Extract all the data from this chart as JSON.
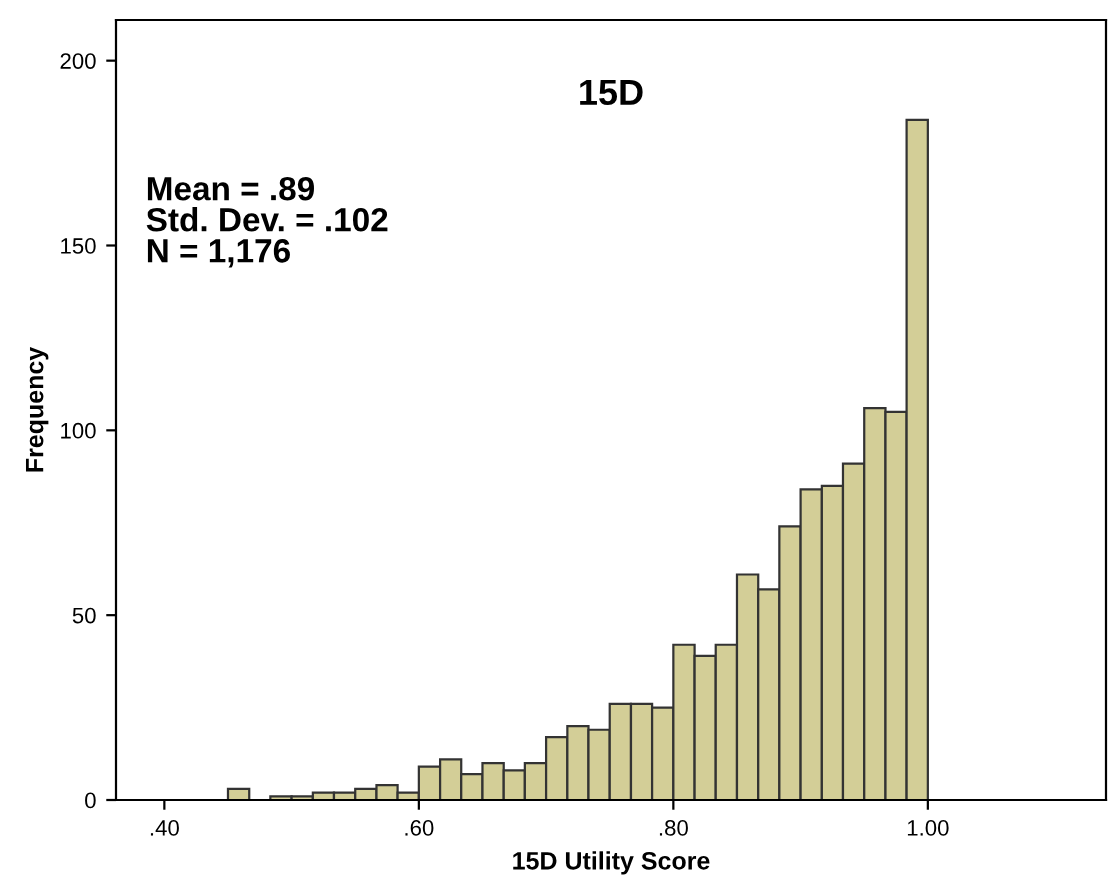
{
  "chart_data": {
    "type": "histogram",
    "title": "15D",
    "xlabel": "15D Utility Score",
    "ylabel": "Frequency",
    "bins": [
      0.45,
      0.4667,
      0.4833,
      0.5,
      0.5167,
      0.5333,
      0.55,
      0.5667,
      0.5833,
      0.6,
      0.6167,
      0.6333,
      0.65,
      0.6667,
      0.6833,
      0.7,
      0.7167,
      0.7333,
      0.75,
      0.7667,
      0.7833,
      0.8,
      0.8167,
      0.8333,
      0.85,
      0.8667,
      0.8833,
      0.9,
      0.9167,
      0.9333,
      0.95,
      0.9667,
      0.9833,
      1.0
    ],
    "values": [
      3,
      0,
      1,
      1,
      2,
      2,
      3,
      4,
      2,
      9,
      11,
      7,
      10,
      8,
      10,
      17,
      20,
      19,
      26,
      26,
      25,
      42,
      39,
      42,
      61,
      57,
      74,
      84,
      85,
      91,
      106,
      105,
      184
    ],
    "color": "#d3ce97",
    "xlim": [
      0.362,
      1.14
    ],
    "ylim": [
      0,
      211
    ],
    "xticks": [
      {
        "value": 0.4,
        "label": ".40"
      },
      {
        "value": 0.6,
        "label": ".60"
      },
      {
        "value": 0.8,
        "label": ".80"
      },
      {
        "value": 1.0,
        "label": "1.00"
      }
    ],
    "yticks": [
      0,
      50,
      100,
      150,
      200
    ],
    "annotations": [
      "Mean = .89\nStd. Dev. = .102\nN = 1,176"
    ],
    "grid": false
  }
}
